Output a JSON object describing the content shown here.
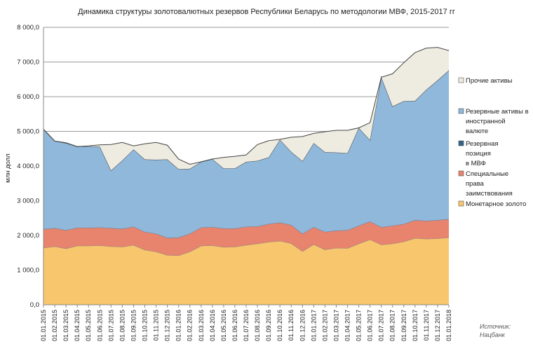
{
  "chart_data": {
    "type": "area",
    "stacked": true,
    "title": "Динамика структуры золотовалютных резервов Республики Беларусь по методологии МВФ, 2015-2017 гг",
    "ylabel": "млн долл",
    "xlabel": "",
    "ylim": [
      0,
      8000
    ],
    "yticks": [
      "0,0",
      "1 000,0",
      "2 000,0",
      "3 000,0",
      "4 000,0",
      "5 000,0",
      "6 000,0",
      "7 000,0",
      "8 000,0"
    ],
    "grid": "horizontal",
    "legend_position": "right",
    "categories": [
      "01.01.2015",
      "01.02.2015",
      "01.03.2015",
      "01.04.2015",
      "01.05.2015",
      "01.06.2015",
      "01.07.2015",
      "01.08.2015",
      "01.09.2015",
      "01.10.2015",
      "01.11.2015",
      "01.12.2015",
      "01.01.2016",
      "01.02.2016",
      "01.03.2016",
      "01.04.2016",
      "01.05.2016",
      "01.06.2016",
      "01.07.2016",
      "01.08.2016",
      "01.09.2016",
      "01.10.2016",
      "01.11.2016",
      "01.12.2016",
      "01.01.2017",
      "01.02.2017",
      "01.03.2017",
      "01.04.2017",
      "01.05.2017",
      "01.06.2017",
      "01.07.2017",
      "01.08.2017",
      "01.09.2017",
      "01.10.2017",
      "01.11.2017",
      "01.12.2017",
      "01.01.2018"
    ],
    "series": [
      {
        "name": "Монетарное золото",
        "color": "#F8C66C",
        "values": [
          1640,
          1680,
          1620,
          1700,
          1700,
          1710,
          1680,
          1670,
          1720,
          1580,
          1530,
          1430,
          1420,
          1530,
          1700,
          1710,
          1660,
          1670,
          1720,
          1760,
          1810,
          1840,
          1770,
          1540,
          1740,
          1590,
          1640,
          1630,
          1760,
          1880,
          1730,
          1760,
          1820,
          1920,
          1900,
          1910,
          1940
        ]
      },
      {
        "name": "Специальные права заимствования",
        "color": "#E8836E",
        "values": [
          540,
          530,
          530,
          520,
          520,
          520,
          530,
          520,
          530,
          520,
          520,
          500,
          520,
          520,
          530,
          530,
          540,
          530,
          530,
          500,
          520,
          530,
          530,
          510,
          500,
          510,
          500,
          520,
          520,
          520,
          510,
          520,
          510,
          520,
          520,
          530,
          530
        ]
      },
      {
        "name": "Резервная позиция в МВФ",
        "color": "#2F6388",
        "values": [
          1,
          1,
          1,
          1,
          1,
          1,
          1,
          1,
          1,
          1,
          1,
          1,
          1,
          1,
          1,
          1,
          1,
          1,
          1,
          1,
          1,
          1,
          1,
          1,
          1,
          1,
          1,
          1,
          1,
          1,
          1,
          1,
          1,
          1,
          1,
          1,
          1
        ]
      },
      {
        "name": "Резервные активы в иностранной валюте",
        "color": "#8FB8DA",
        "values": [
          2880,
          2510,
          2510,
          2340,
          2350,
          2330,
          1660,
          1970,
          2230,
          2090,
          2130,
          2260,
          1970,
          1870,
          1890,
          1960,
          1730,
          1730,
          1870,
          1890,
          1920,
          2390,
          2110,
          2090,
          2420,
          2300,
          2250,
          2220,
          2820,
          2350,
          4320,
          3440,
          3540,
          3440,
          3780,
          4030,
          4290
        ]
      },
      {
        "name": "Прочие активы",
        "color": "#EEEBE0",
        "values": [
          0,
          0,
          10,
          0,
          10,
          50,
          750,
          520,
          100,
          450,
          500,
          410,
          290,
          130,
          0,
          0,
          320,
          350,
          200,
          470,
          480,
          10,
          420,
          710,
          280,
          590,
          640,
          660,
          0,
          500,
          0,
          940,
          1110,
          1390,
          1200,
          950,
          570
        ]
      }
    ],
    "legend": [
      {
        "lines": [
          "Прочие активы"
        ],
        "color": "#EEEBE0"
      },
      {
        "lines": [
          "Резервные активы в",
          "иностранной",
          "валюте"
        ],
        "color": "#8FB8DA"
      },
      {
        "lines": [
          "Резервная",
          "позиция",
          "в МВФ"
        ],
        "color": "#2F6388"
      },
      {
        "lines": [
          "Специальные",
          "права",
          "заимствования"
        ],
        "color": "#E8836E"
      },
      {
        "lines": [
          "Монетарное золото"
        ],
        "color": "#F8C66C"
      }
    ],
    "source": [
      "Источник:",
      "Нацбанк"
    ]
  }
}
